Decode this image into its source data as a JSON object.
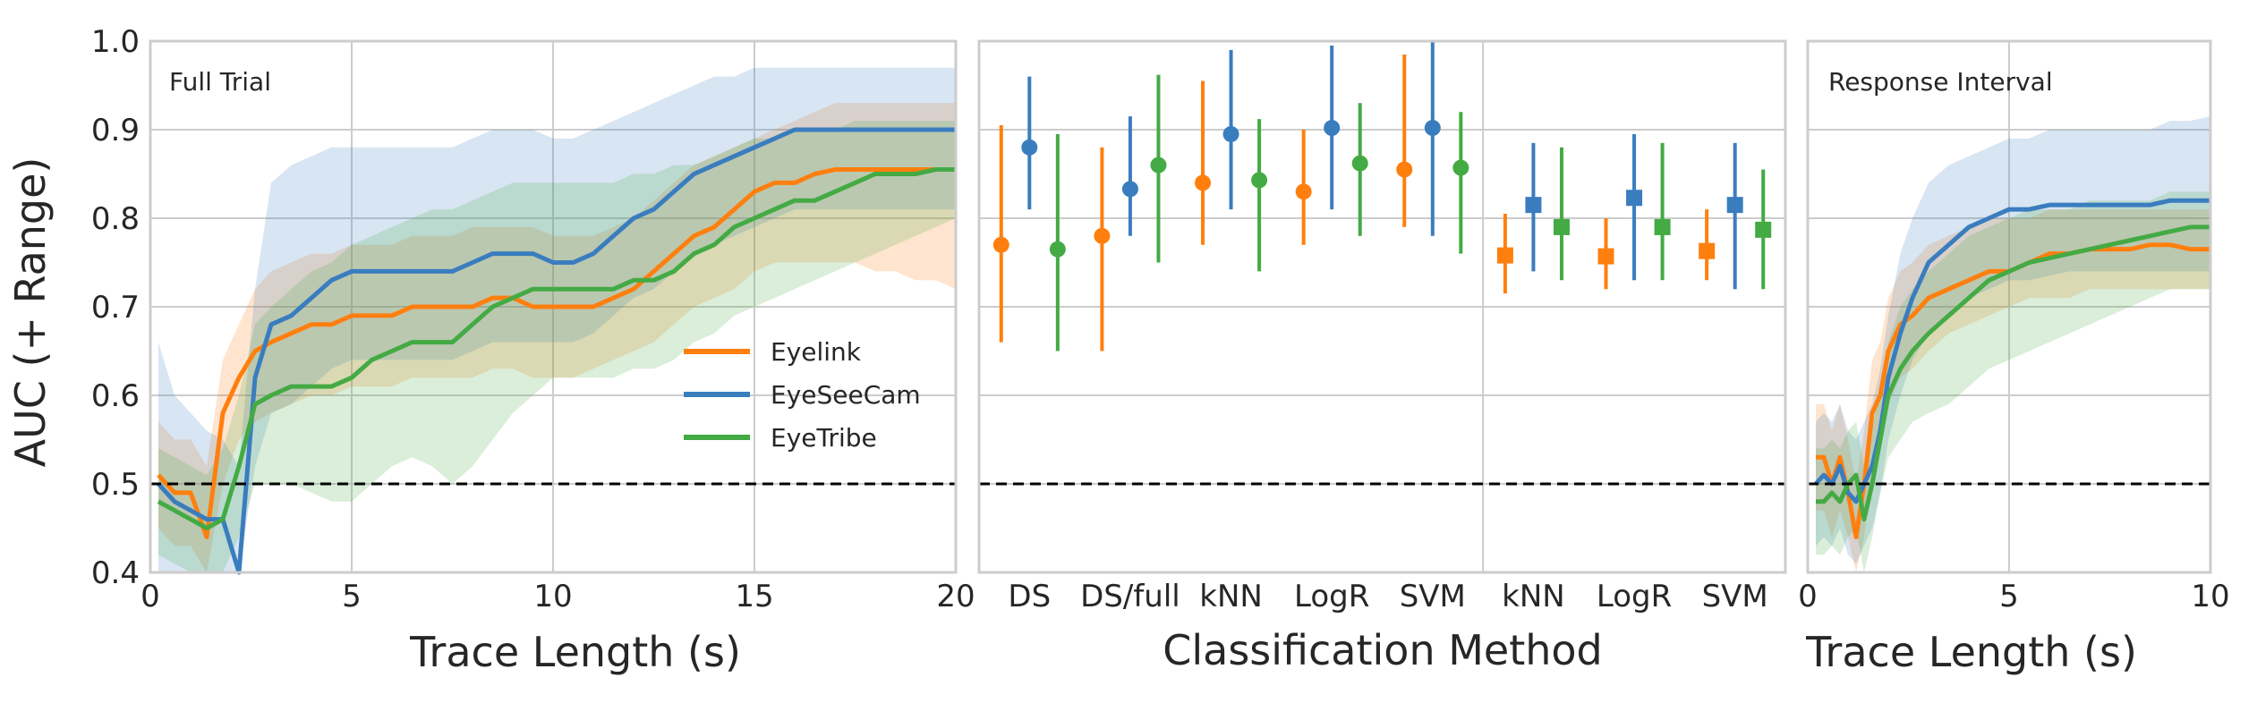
{
  "colors": {
    "Eyelink": "#ff7f0e",
    "EyeSeeCam": "#3a7dbf",
    "EyeTribe": "#44aa44",
    "grid": "#cccccc",
    "frame": "#cccccc",
    "chance": "#000000"
  },
  "y_axis": {
    "label": "AUC (+ Range)",
    "ylim": [
      0.4,
      1.0
    ],
    "ticks": [
      "0.4",
      "0.5",
      "0.6",
      "0.7",
      "0.8",
      "0.9",
      "1.0"
    ],
    "chance": 0.5
  },
  "chart_data": [
    {
      "type": "line",
      "panel": "left",
      "annotation": "Full Trial",
      "xlabel": "Trace Length (s)",
      "xlim": [
        0,
        20
      ],
      "xticks": [
        "0",
        "5",
        "10",
        "15",
        "20"
      ],
      "grid": true,
      "legend_placement": "lower-right",
      "legend": [
        "Eyelink",
        "EyeSeeCam",
        "EyeTribe"
      ],
      "x": [
        0.2,
        0.6,
        1.0,
        1.4,
        1.8,
        2.2,
        2.6,
        3.0,
        3.5,
        4.0,
        4.5,
        5.0,
        5.5,
        6.0,
        6.5,
        7.0,
        7.5,
        8.0,
        8.5,
        9.0,
        9.5,
        10.0,
        10.5,
        11.0,
        11.5,
        12.0,
        12.5,
        13.0,
        13.5,
        14.0,
        14.5,
        15.0,
        15.5,
        16.0,
        16.5,
        17.0,
        17.5,
        18.0,
        18.5,
        19.0,
        19.5,
        20.0
      ],
      "series": [
        {
          "name": "Eyelink",
          "values": [
            0.51,
            0.49,
            0.49,
            0.44,
            0.58,
            0.62,
            0.65,
            0.66,
            0.67,
            0.68,
            0.68,
            0.69,
            0.69,
            0.69,
            0.7,
            0.7,
            0.7,
            0.7,
            0.71,
            0.71,
            0.7,
            0.7,
            0.7,
            0.7,
            0.71,
            0.72,
            0.74,
            0.76,
            0.78,
            0.79,
            0.81,
            0.83,
            0.84,
            0.84,
            0.85,
            0.855,
            0.855,
            0.855,
            0.855,
            0.855,
            0.855,
            0.855
          ],
          "lower": [
            0.45,
            0.43,
            0.43,
            0.4,
            0.5,
            0.55,
            0.57,
            0.58,
            0.59,
            0.6,
            0.6,
            0.61,
            0.61,
            0.61,
            0.62,
            0.62,
            0.62,
            0.62,
            0.63,
            0.63,
            0.62,
            0.62,
            0.62,
            0.63,
            0.64,
            0.65,
            0.66,
            0.68,
            0.7,
            0.71,
            0.72,
            0.74,
            0.75,
            0.75,
            0.75,
            0.75,
            0.75,
            0.74,
            0.74,
            0.73,
            0.73,
            0.72
          ],
          "upper": [
            0.57,
            0.55,
            0.55,
            0.52,
            0.64,
            0.68,
            0.72,
            0.74,
            0.75,
            0.76,
            0.76,
            0.77,
            0.77,
            0.77,
            0.78,
            0.78,
            0.78,
            0.79,
            0.79,
            0.79,
            0.79,
            0.78,
            0.78,
            0.78,
            0.79,
            0.8,
            0.82,
            0.84,
            0.86,
            0.87,
            0.88,
            0.89,
            0.9,
            0.91,
            0.92,
            0.93,
            0.93,
            0.93,
            0.93,
            0.93,
            0.93,
            0.93
          ]
        },
        {
          "name": "EyeSeeCam",
          "values": [
            0.5,
            0.48,
            0.47,
            0.46,
            0.46,
            0.4,
            0.62,
            0.68,
            0.69,
            0.71,
            0.73,
            0.74,
            0.74,
            0.74,
            0.74,
            0.74,
            0.74,
            0.75,
            0.76,
            0.76,
            0.76,
            0.75,
            0.75,
            0.76,
            0.78,
            0.8,
            0.81,
            0.83,
            0.85,
            0.86,
            0.87,
            0.88,
            0.89,
            0.9,
            0.9,
            0.9,
            0.9,
            0.9,
            0.9,
            0.9,
            0.9,
            0.9
          ],
          "lower": [
            0.4,
            0.4,
            0.4,
            0.4,
            0.4,
            0.4,
            0.52,
            0.58,
            0.59,
            0.61,
            0.63,
            0.64,
            0.64,
            0.64,
            0.64,
            0.64,
            0.64,
            0.65,
            0.66,
            0.66,
            0.66,
            0.66,
            0.66,
            0.67,
            0.69,
            0.71,
            0.72,
            0.74,
            0.76,
            0.77,
            0.78,
            0.79,
            0.8,
            0.81,
            0.81,
            0.81,
            0.81,
            0.81,
            0.81,
            0.81,
            0.81,
            0.81
          ],
          "upper": [
            0.66,
            0.6,
            0.58,
            0.56,
            0.55,
            0.52,
            0.72,
            0.84,
            0.86,
            0.87,
            0.88,
            0.88,
            0.88,
            0.88,
            0.88,
            0.88,
            0.88,
            0.89,
            0.9,
            0.9,
            0.9,
            0.89,
            0.89,
            0.9,
            0.91,
            0.92,
            0.93,
            0.94,
            0.95,
            0.96,
            0.96,
            0.97,
            0.97,
            0.97,
            0.97,
            0.97,
            0.97,
            0.97,
            0.97,
            0.97,
            0.97,
            0.97
          ]
        },
        {
          "name": "EyeTribe",
          "values": [
            0.48,
            0.47,
            0.46,
            0.45,
            0.46,
            0.52,
            0.59,
            0.6,
            0.61,
            0.61,
            0.61,
            0.62,
            0.64,
            0.65,
            0.66,
            0.66,
            0.66,
            0.68,
            0.7,
            0.71,
            0.72,
            0.72,
            0.72,
            0.72,
            0.72,
            0.73,
            0.73,
            0.74,
            0.76,
            0.77,
            0.79,
            0.8,
            0.81,
            0.82,
            0.82,
            0.83,
            0.84,
            0.85,
            0.85,
            0.85,
            0.855,
            0.855
          ],
          "lower": [
            0.42,
            0.41,
            0.4,
            0.4,
            0.4,
            0.44,
            0.5,
            0.5,
            0.5,
            0.49,
            0.48,
            0.48,
            0.5,
            0.52,
            0.53,
            0.52,
            0.5,
            0.52,
            0.55,
            0.58,
            0.6,
            0.62,
            0.62,
            0.62,
            0.62,
            0.63,
            0.63,
            0.64,
            0.66,
            0.67,
            0.69,
            0.7,
            0.71,
            0.72,
            0.73,
            0.74,
            0.75,
            0.76,
            0.77,
            0.78,
            0.79,
            0.8
          ],
          "upper": [
            0.54,
            0.53,
            0.52,
            0.51,
            0.54,
            0.6,
            0.68,
            0.7,
            0.72,
            0.74,
            0.75,
            0.77,
            0.78,
            0.79,
            0.8,
            0.81,
            0.81,
            0.82,
            0.83,
            0.84,
            0.84,
            0.84,
            0.84,
            0.84,
            0.84,
            0.85,
            0.85,
            0.86,
            0.86,
            0.87,
            0.88,
            0.89,
            0.89,
            0.9,
            0.9,
            0.9,
            0.91,
            0.91,
            0.91,
            0.91,
            0.91,
            0.91
          ]
        }
      ]
    },
    {
      "type": "scatter",
      "panel": "middle",
      "subtype": "errorbar",
      "xlabel": "Classification Method",
      "categories": [
        "DS",
        "DS/full",
        "kNN",
        "LogR",
        "SVM",
        "kNN",
        "LogR",
        "SVM"
      ],
      "marker_by_group": [
        "circle",
        "circle",
        "circle",
        "circle",
        "circle",
        "square",
        "square",
        "square"
      ],
      "series": [
        {
          "name": "Eyelink",
          "values": [
            0.77,
            0.78,
            0.84,
            0.83,
            0.855,
            0.758,
            0.757,
            0.763
          ],
          "lower": [
            0.66,
            0.65,
            0.77,
            0.77,
            0.79,
            0.715,
            0.72,
            0.73
          ],
          "upper": [
            0.905,
            0.88,
            0.955,
            0.9,
            0.985,
            0.805,
            0.8,
            0.81
          ]
        },
        {
          "name": "EyeSeeCam",
          "values": [
            0.88,
            0.833,
            0.895,
            0.902,
            0.902,
            0.815,
            0.823,
            0.815
          ],
          "lower": [
            0.81,
            0.78,
            0.81,
            0.81,
            0.78,
            0.74,
            0.73,
            0.72
          ],
          "upper": [
            0.96,
            0.915,
            0.99,
            0.995,
            1.0,
            0.885,
            0.895,
            0.885
          ]
        },
        {
          "name": "EyeTribe",
          "values": [
            0.765,
            0.86,
            0.843,
            0.862,
            0.857,
            0.79,
            0.79,
            0.787
          ],
          "lower": [
            0.65,
            0.75,
            0.74,
            0.78,
            0.76,
            0.73,
            0.73,
            0.72
          ],
          "upper": [
            0.895,
            0.962,
            0.912,
            0.93,
            0.92,
            0.88,
            0.885,
            0.855
          ]
        }
      ]
    },
    {
      "type": "line",
      "panel": "right",
      "annotation": "Response Interval",
      "xlabel": "Trace Length (s)",
      "xlim": [
        0,
        10
      ],
      "xticks": [
        "0",
        "5",
        "10"
      ],
      "grid": true,
      "x": [
        0.2,
        0.4,
        0.6,
        0.8,
        1.0,
        1.2,
        1.4,
        1.6,
        1.8,
        2.0,
        2.3,
        2.6,
        3.0,
        3.5,
        4.0,
        4.5,
        5.0,
        5.5,
        6.0,
        6.5,
        7.0,
        7.5,
        8.0,
        8.5,
        9.0,
        9.5,
        10.0
      ],
      "series": [
        {
          "name": "Eyelink",
          "values": [
            0.53,
            0.53,
            0.5,
            0.53,
            0.49,
            0.44,
            0.5,
            0.58,
            0.6,
            0.65,
            0.68,
            0.69,
            0.71,
            0.72,
            0.73,
            0.74,
            0.74,
            0.75,
            0.76,
            0.76,
            0.765,
            0.765,
            0.765,
            0.77,
            0.77,
            0.765,
            0.765
          ],
          "lower": [
            0.47,
            0.47,
            0.44,
            0.47,
            0.44,
            0.4,
            0.44,
            0.52,
            0.54,
            0.59,
            0.62,
            0.63,
            0.65,
            0.67,
            0.68,
            0.69,
            0.7,
            0.71,
            0.71,
            0.71,
            0.72,
            0.72,
            0.72,
            0.72,
            0.72,
            0.72,
            0.72
          ],
          "upper": [
            0.59,
            0.59,
            0.56,
            0.59,
            0.55,
            0.5,
            0.56,
            0.64,
            0.66,
            0.71,
            0.74,
            0.75,
            0.77,
            0.78,
            0.79,
            0.8,
            0.8,
            0.8,
            0.81,
            0.81,
            0.81,
            0.81,
            0.81,
            0.81,
            0.81,
            0.81,
            0.81
          ]
        },
        {
          "name": "EyeSeeCam",
          "values": [
            0.5,
            0.51,
            0.5,
            0.52,
            0.49,
            0.48,
            0.5,
            0.52,
            0.56,
            0.62,
            0.67,
            0.71,
            0.75,
            0.77,
            0.79,
            0.8,
            0.81,
            0.81,
            0.815,
            0.815,
            0.815,
            0.815,
            0.815,
            0.815,
            0.82,
            0.82,
            0.82
          ],
          "lower": [
            0.43,
            0.44,
            0.43,
            0.45,
            0.42,
            0.41,
            0.43,
            0.45,
            0.49,
            0.55,
            0.6,
            0.64,
            0.67,
            0.69,
            0.71,
            0.72,
            0.73,
            0.73,
            0.735,
            0.74,
            0.74,
            0.74,
            0.74,
            0.74,
            0.74,
            0.74,
            0.74
          ],
          "upper": [
            0.57,
            0.58,
            0.57,
            0.59,
            0.56,
            0.55,
            0.57,
            0.59,
            0.63,
            0.69,
            0.76,
            0.8,
            0.84,
            0.86,
            0.87,
            0.88,
            0.89,
            0.89,
            0.9,
            0.9,
            0.9,
            0.9,
            0.9,
            0.9,
            0.91,
            0.91,
            0.915
          ]
        },
        {
          "name": "EyeTribe",
          "values": [
            0.48,
            0.48,
            0.49,
            0.48,
            0.5,
            0.51,
            0.46,
            0.5,
            0.55,
            0.6,
            0.63,
            0.65,
            0.67,
            0.69,
            0.71,
            0.73,
            0.74,
            0.75,
            0.755,
            0.76,
            0.765,
            0.77,
            0.775,
            0.78,
            0.785,
            0.79,
            0.79
          ],
          "lower": [
            0.42,
            0.42,
            0.43,
            0.42,
            0.44,
            0.45,
            0.4,
            0.44,
            0.49,
            0.53,
            0.55,
            0.57,
            0.58,
            0.59,
            0.61,
            0.63,
            0.64,
            0.65,
            0.66,
            0.67,
            0.68,
            0.69,
            0.7,
            0.71,
            0.72,
            0.72,
            0.72
          ],
          "upper": [
            0.54,
            0.54,
            0.55,
            0.54,
            0.56,
            0.57,
            0.52,
            0.56,
            0.61,
            0.66,
            0.7,
            0.72,
            0.74,
            0.76,
            0.78,
            0.79,
            0.8,
            0.81,
            0.81,
            0.81,
            0.82,
            0.82,
            0.82,
            0.82,
            0.83,
            0.83,
            0.83
          ]
        }
      ]
    }
  ]
}
